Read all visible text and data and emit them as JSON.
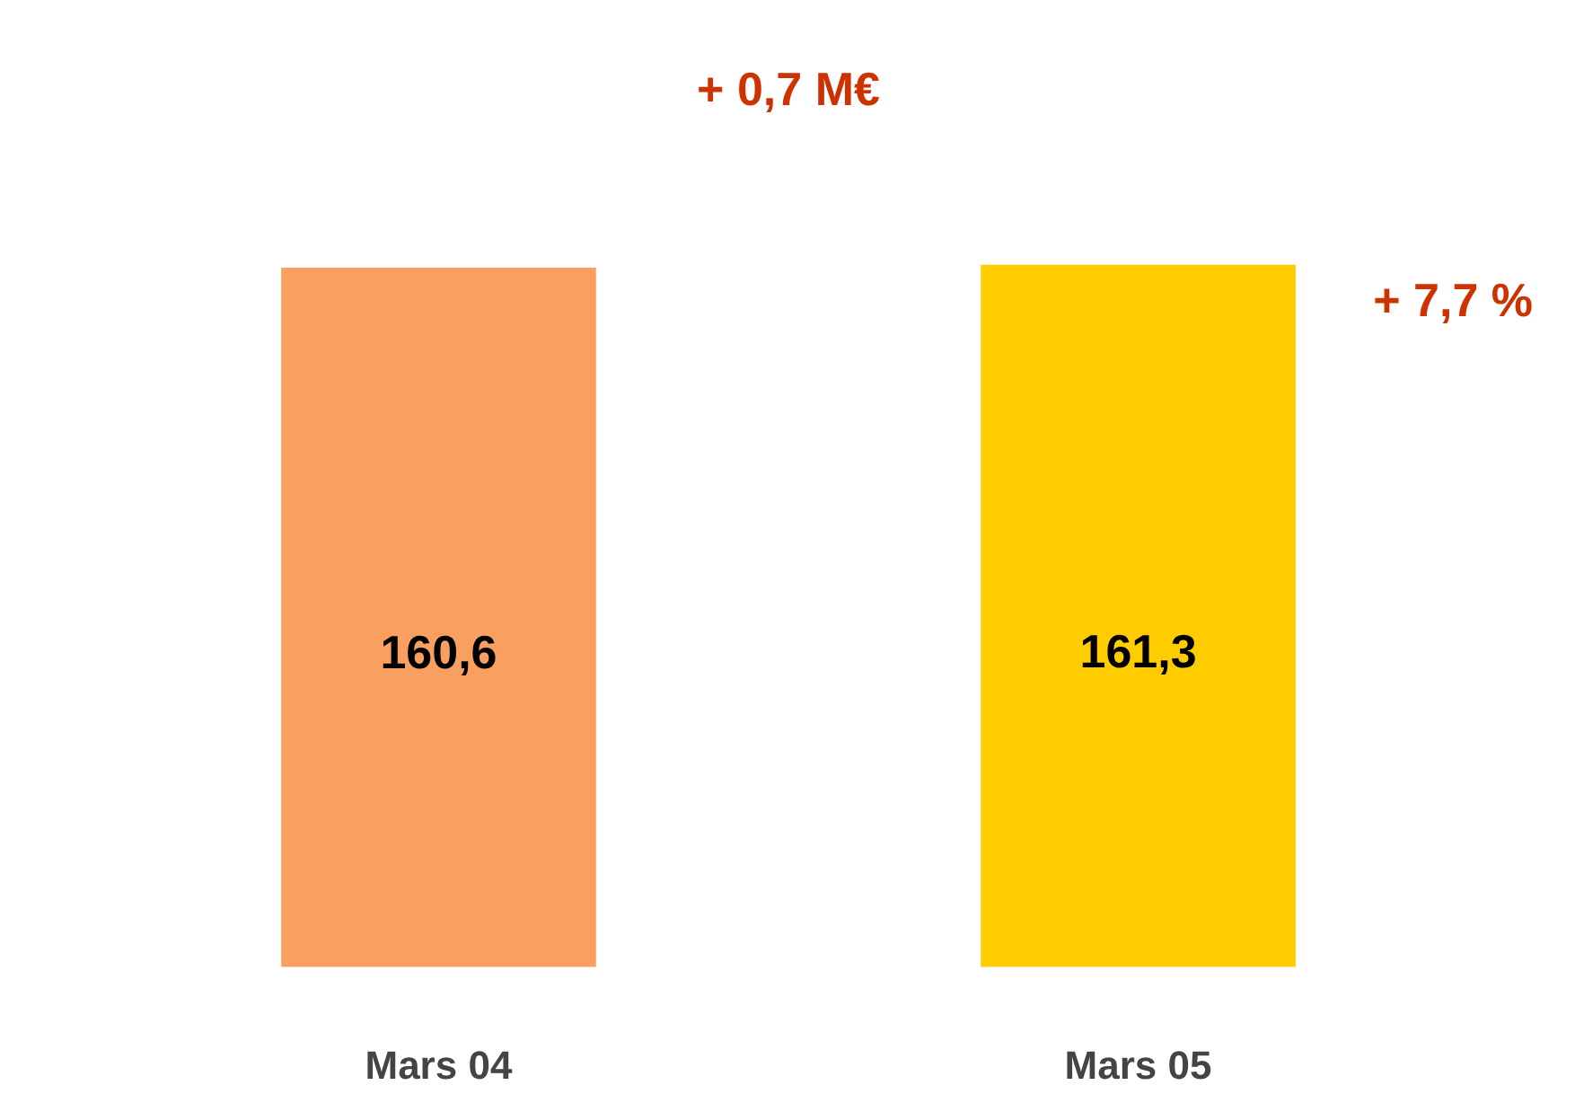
{
  "chart_data": {
    "type": "bar",
    "categories": [
      "Mars 04",
      "Mars 05"
    ],
    "values": [
      160.6,
      161.3
    ],
    "colors": [
      "#f9a060",
      "#ffcc00"
    ],
    "value_labels": [
      "160,6",
      "161,3"
    ],
    "annotations": [
      "+ 0,7 M€",
      "+ 7,7 %"
    ]
  }
}
